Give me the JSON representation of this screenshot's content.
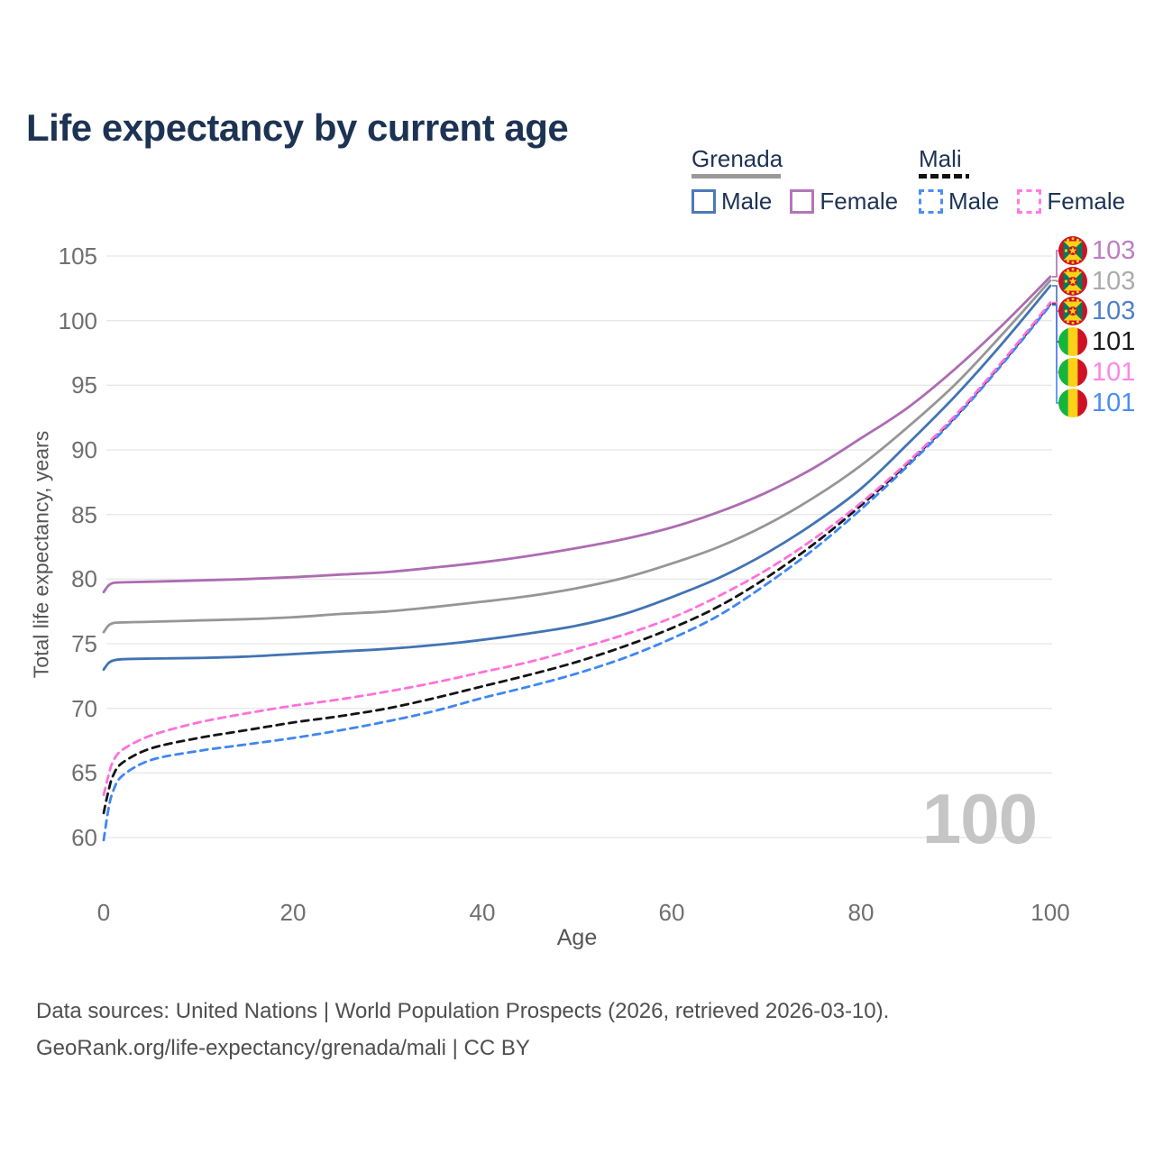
{
  "title": "Life expectancy by current age",
  "legend": {
    "groups": [
      {
        "label": "Grenada",
        "style": "solid",
        "items": [
          {
            "label": "Male"
          },
          {
            "label": "Female"
          }
        ]
      },
      {
        "label": "Mali",
        "style": "dashed",
        "items": [
          {
            "label": "Male"
          },
          {
            "label": "Female"
          }
        ]
      }
    ]
  },
  "watermark": "100",
  "footer": {
    "line1": "Data sources: United Nations | World Population Prospects (2026, retrieved 2026-03-10).",
    "line2": "GeoRank.org/life-expectancy/grenada/mali | CC BY"
  },
  "colors": {
    "title_text": "#1d3354",
    "grid": "#e7e7e7",
    "tick_text": "#6f6f6f",
    "axis_title_text": "#565656",
    "watermark_text": "#c5c5c5",
    "footer_text": "#4f4f4f"
  },
  "chart_data": {
    "type": "line",
    "title": "Life expectancy by current age",
    "xlabel": "Age",
    "ylabel": "Total life expectancy, years",
    "xlim": [
      0,
      100
    ],
    "ylim": [
      60,
      105
    ],
    "xticks": [
      0,
      20,
      40,
      60,
      80,
      100
    ],
    "yticks": [
      60,
      65,
      70,
      75,
      80,
      85,
      90,
      95,
      100,
      105
    ],
    "grid": true,
    "legend_position": "top-right",
    "ages": [
      0,
      0.5,
      1,
      2,
      5,
      10,
      15,
      20,
      25,
      30,
      35,
      40,
      45,
      50,
      55,
      60,
      65,
      70,
      75,
      80,
      85,
      90,
      95,
      100
    ],
    "series": [
      {
        "key": "grenada_total",
        "name": "Grenada (both sexes)",
        "color": "#969696",
        "style": "solid",
        "values": [
          75.9,
          76.4,
          76.6,
          76.65,
          76.7,
          76.8,
          76.9,
          77.05,
          77.3,
          77.5,
          77.85,
          78.25,
          78.7,
          79.3,
          80.1,
          81.2,
          82.5,
          84.2,
          86.3,
          88.8,
          91.8,
          95.1,
          99.0,
          103.1
        ]
      },
      {
        "key": "grenada_female",
        "name": "Grenada Female",
        "color": "#ad6cb2",
        "style": "solid",
        "values": [
          79.0,
          79.5,
          79.7,
          79.75,
          79.8,
          79.9,
          80.0,
          80.15,
          80.35,
          80.55,
          80.9,
          81.3,
          81.8,
          82.4,
          83.1,
          84.0,
          85.2,
          86.7,
          88.6,
          90.9,
          93.3,
          96.3,
          99.7,
          103.4
        ]
      },
      {
        "key": "grenada_male",
        "name": "Grenada Male",
        "color": "#4273b4",
        "style": "solid",
        "values": [
          73.0,
          73.5,
          73.7,
          73.8,
          73.85,
          73.9,
          74.0,
          74.2,
          74.4,
          74.6,
          74.9,
          75.3,
          75.8,
          76.4,
          77.3,
          78.6,
          80.1,
          82.0,
          84.3,
          87.0,
          90.5,
          94.2,
          98.3,
          102.7
        ]
      },
      {
        "key": "mali_total",
        "name": "Mali (both sexes)",
        "color": "#141414",
        "style": "dashed",
        "values": [
          61.9,
          63.6,
          64.8,
          65.8,
          66.9,
          67.7,
          68.3,
          68.9,
          69.4,
          70.0,
          70.8,
          71.7,
          72.6,
          73.6,
          74.8,
          76.2,
          77.9,
          80.1,
          82.7,
          85.7,
          89.0,
          92.6,
          96.8,
          101.3
        ]
      },
      {
        "key": "mali_male",
        "name": "Mali Male",
        "color": "#3e86f2",
        "style": "dashed",
        "values": [
          59.8,
          62.2,
          63.6,
          64.8,
          66.0,
          66.7,
          67.2,
          67.7,
          68.3,
          69.0,
          69.8,
          70.8,
          71.7,
          72.7,
          73.9,
          75.4,
          77.2,
          79.6,
          82.3,
          85.4,
          88.8,
          92.5,
          96.7,
          101.2
        ]
      },
      {
        "key": "mali_female",
        "name": "Mali Female",
        "color": "#ff70dc",
        "style": "dashed",
        "values": [
          63.3,
          64.8,
          65.9,
          66.8,
          67.9,
          68.9,
          69.6,
          70.2,
          70.7,
          71.3,
          72.0,
          72.8,
          73.6,
          74.6,
          75.7,
          77.0,
          78.7,
          80.7,
          83.1,
          85.9,
          89.1,
          92.7,
          96.9,
          101.4
        ]
      }
    ],
    "end_labels": [
      {
        "series": "grenada_female",
        "text": "103",
        "text_color": "#bb7ec2",
        "flag": "grenada"
      },
      {
        "series": "grenada_total",
        "text": "103",
        "text_color": "#ababab",
        "flag": "grenada"
      },
      {
        "series": "grenada_male",
        "text": "103",
        "text_color": "#4e80c8",
        "flag": "grenada"
      },
      {
        "series": "mali_total",
        "text": "101",
        "text_color": "#1b1b1b",
        "flag": "mali"
      },
      {
        "series": "mali_female",
        "text": "101",
        "text_color": "#ff85e6",
        "flag": "mali"
      },
      {
        "series": "mali_male",
        "text": "101",
        "text_color": "#4b8cf5",
        "flag": "mali"
      }
    ]
  }
}
